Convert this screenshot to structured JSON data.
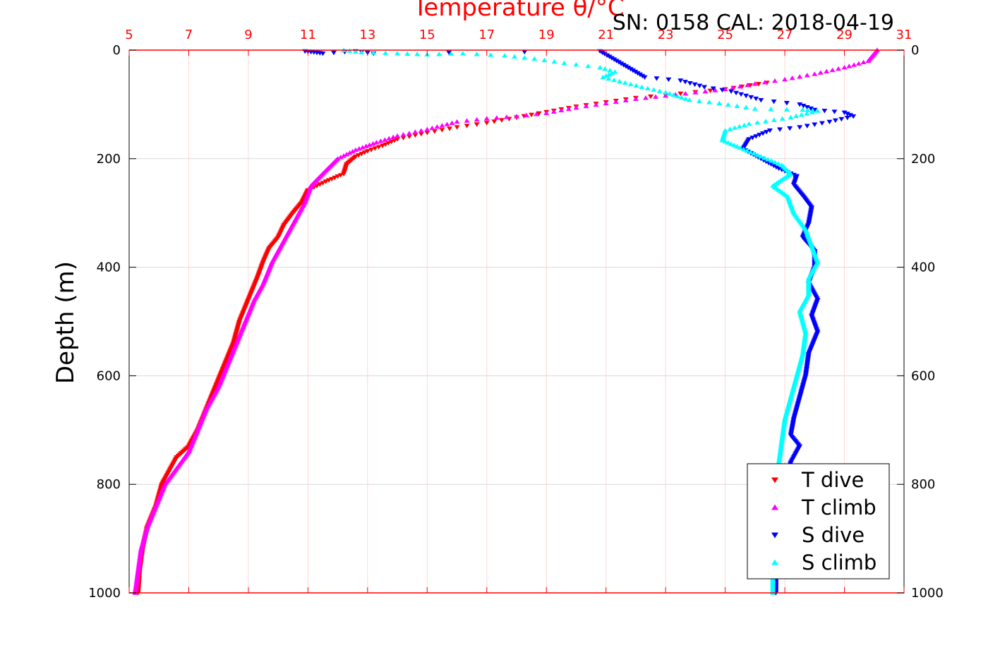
{
  "chart_data": {
    "type": "scatter",
    "title": "Temperature θ/°C",
    "subtitle": "SN: 0158  CAL: 2018-04-19",
    "ylabel": "Depth (m)",
    "xlim": [
      5,
      31
    ],
    "ylim": [
      0,
      1000
    ],
    "y_reversed": true,
    "x_ticks": [
      "5",
      "7",
      "9",
      "11",
      "13",
      "15",
      "17",
      "19",
      "21",
      "23",
      "25",
      "27",
      "29",
      "31"
    ],
    "y_ticks": [
      "0",
      "200",
      "400",
      "600",
      "800",
      "1000"
    ],
    "grid": true,
    "legend_position": "bottom-right",
    "colors": {
      "axis_top": "#ff0000",
      "axis": "#000000",
      "grid": "#d9d9d9",
      "grid_x": "#ffd6d6"
    },
    "series": [
      {
        "name": "T dive",
        "marker": "triangle-down",
        "color": "#ff0000",
        "points": [
          [
            26.4,
            60
          ],
          [
            25.0,
            72
          ],
          [
            23.5,
            80
          ],
          [
            22.0,
            88
          ],
          [
            21.0,
            96
          ],
          [
            20.0,
            104
          ],
          [
            19.0,
            114
          ],
          [
            18.0,
            124
          ],
          [
            17.0,
            134
          ],
          [
            16.0,
            142
          ],
          [
            15.0,
            152
          ],
          [
            14.0,
            164
          ],
          [
            13.5,
            176
          ],
          [
            13.0,
            186
          ],
          [
            12.6,
            196
          ],
          [
            12.3,
            210
          ],
          [
            12.2,
            228
          ],
          [
            11.6,
            242
          ],
          [
            11.0,
            258
          ],
          [
            10.8,
            280
          ],
          [
            10.5,
            300
          ],
          [
            10.2,
            322
          ],
          [
            10.0,
            345
          ],
          [
            9.7,
            365
          ],
          [
            9.5,
            390
          ],
          [
            9.3,
            420
          ],
          [
            9.0,
            460
          ],
          [
            8.7,
            500
          ],
          [
            8.5,
            540
          ],
          [
            8.2,
            580
          ],
          [
            7.9,
            620
          ],
          [
            7.6,
            660
          ],
          [
            7.3,
            700
          ],
          [
            7.0,
            730
          ],
          [
            6.6,
            750
          ],
          [
            6.4,
            770
          ],
          [
            6.1,
            800
          ],
          [
            5.9,
            840
          ],
          [
            5.6,
            880
          ],
          [
            5.45,
            920
          ],
          [
            5.35,
            960
          ],
          [
            5.3,
            1000
          ]
        ]
      },
      {
        "name": "T climb",
        "marker": "triangle-up",
        "color": "#ff00ff",
        "points": [
          [
            30.1,
            0
          ],
          [
            29.8,
            20
          ],
          [
            29.0,
            32
          ],
          [
            28.0,
            44
          ],
          [
            27.0,
            54
          ],
          [
            26.0,
            62
          ],
          [
            25.0,
            72
          ],
          [
            24.0,
            78
          ],
          [
            23.0,
            84
          ],
          [
            22.0,
            90
          ],
          [
            21.0,
            98
          ],
          [
            20.0,
            106
          ],
          [
            19.0,
            116
          ],
          [
            18.0,
            122
          ],
          [
            17.0,
            126
          ],
          [
            16.0,
            132
          ],
          [
            15.0,
            146
          ],
          [
            14.0,
            158
          ],
          [
            13.3,
            170
          ],
          [
            12.6,
            184
          ],
          [
            12.0,
            200
          ],
          [
            11.6,
            222
          ],
          [
            11.1,
            250
          ],
          [
            10.9,
            280
          ],
          [
            10.6,
            310
          ],
          [
            10.2,
            350
          ],
          [
            9.8,
            390
          ],
          [
            9.5,
            430
          ],
          [
            9.2,
            460
          ],
          [
            8.9,
            500
          ],
          [
            8.6,
            540
          ],
          [
            8.3,
            580
          ],
          [
            8.0,
            620
          ],
          [
            7.6,
            660
          ],
          [
            7.3,
            700
          ],
          [
            7.0,
            740
          ],
          [
            6.6,
            770
          ],
          [
            6.2,
            800
          ],
          [
            5.9,
            840
          ],
          [
            5.6,
            880
          ],
          [
            5.4,
            920
          ],
          [
            5.3,
            960
          ],
          [
            5.2,
            1000
          ]
        ]
      },
      {
        "name": "S dive",
        "marker": "triangle-down",
        "color": "#0000ff",
        "points": [
          [
            10.9,
            2
          ],
          [
            11.2,
            4
          ],
          [
            11.5,
            6
          ],
          [
            12.6,
            2
          ],
          [
            13.2,
            6
          ],
          [
            20.8,
            2
          ],
          [
            22.3,
            50
          ],
          [
            23.5,
            56
          ],
          [
            24.3,
            68
          ],
          [
            25.2,
            76
          ],
          [
            26.2,
            92
          ],
          [
            27.5,
            100
          ],
          [
            28.0,
            110
          ],
          [
            29.0,
            115
          ],
          [
            29.3,
            122
          ],
          [
            28.5,
            132
          ],
          [
            27.5,
            142
          ],
          [
            26.5,
            148
          ],
          [
            25.8,
            164
          ],
          [
            25.6,
            182
          ],
          [
            26.2,
            200
          ],
          [
            26.8,
            218
          ],
          [
            27.4,
            232
          ],
          [
            27.3,
            248
          ],
          [
            27.6,
            268
          ],
          [
            27.9,
            290
          ],
          [
            27.8,
            320
          ],
          [
            27.6,
            345
          ],
          [
            28.0,
            370
          ],
          [
            28.0,
            400
          ],
          [
            27.8,
            430
          ],
          [
            28.1,
            460
          ],
          [
            27.9,
            490
          ],
          [
            28.1,
            520
          ],
          [
            27.8,
            560
          ],
          [
            27.7,
            600
          ],
          [
            27.5,
            640
          ],
          [
            27.3,
            680
          ],
          [
            27.2,
            710
          ],
          [
            27.5,
            730
          ],
          [
            27.2,
            760
          ],
          [
            27.0,
            800
          ],
          [
            26.9,
            840
          ],
          [
            26.8,
            880
          ],
          [
            26.8,
            920
          ],
          [
            26.7,
            960
          ],
          [
            26.7,
            1000
          ]
        ]
      },
      {
        "name": "S climb",
        "marker": "triangle-up",
        "color": "#00ffff",
        "points": [
          [
            12.2,
            0
          ],
          [
            12.8,
            4
          ],
          [
            14.0,
            6
          ],
          [
            15.0,
            8
          ],
          [
            16.2,
            6
          ],
          [
            17.6,
            10
          ],
          [
            18.6,
            16
          ],
          [
            19.6,
            24
          ],
          [
            20.8,
            32
          ],
          [
            21.3,
            40
          ],
          [
            20.9,
            50
          ],
          [
            22.2,
            68
          ],
          [
            23.0,
            78
          ],
          [
            23.8,
            92
          ],
          [
            24.8,
            98
          ],
          [
            26.0,
            108
          ],
          [
            27.6,
            110
          ],
          [
            28.1,
            112
          ],
          [
            27.2,
            124
          ],
          [
            25.8,
            136
          ],
          [
            25.0,
            148
          ],
          [
            24.9,
            166
          ],
          [
            25.5,
            180
          ],
          [
            26.2,
            196
          ],
          [
            26.9,
            212
          ],
          [
            27.2,
            228
          ],
          [
            26.6,
            250
          ],
          [
            27.1,
            270
          ],
          [
            27.3,
            300
          ],
          [
            27.7,
            330
          ],
          [
            27.9,
            360
          ],
          [
            28.1,
            390
          ],
          [
            27.8,
            420
          ],
          [
            27.8,
            450
          ],
          [
            27.5,
            480
          ],
          [
            27.7,
            520
          ],
          [
            27.6,
            560
          ],
          [
            27.4,
            600
          ],
          [
            27.2,
            640
          ],
          [
            27.0,
            680
          ],
          [
            26.9,
            720
          ],
          [
            26.8,
            760
          ],
          [
            26.8,
            800
          ],
          [
            26.7,
            850
          ],
          [
            26.6,
            900
          ],
          [
            26.6,
            950
          ],
          [
            26.6,
            1000
          ]
        ]
      }
    ]
  }
}
